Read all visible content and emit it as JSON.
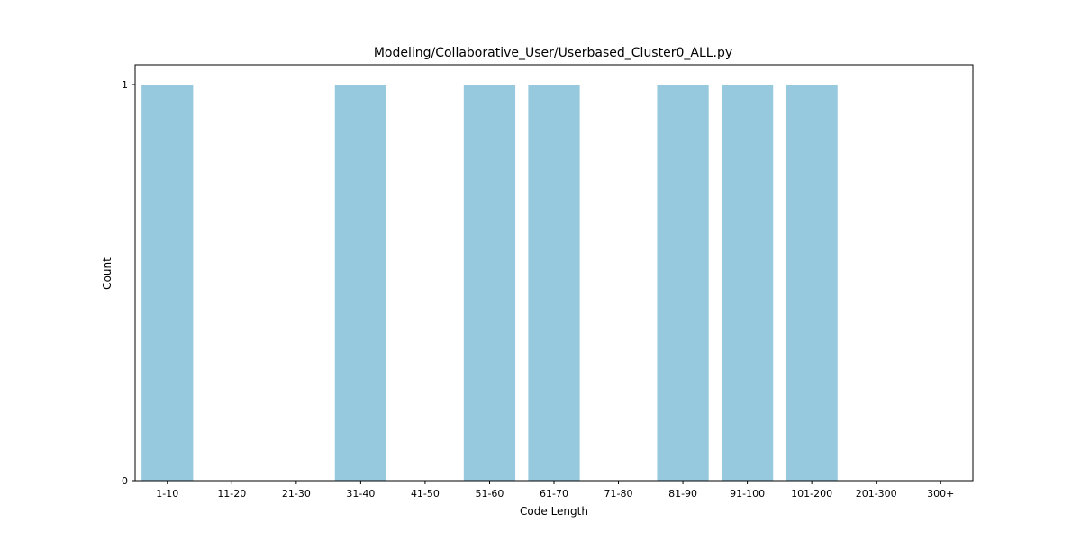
{
  "chart_data": {
    "type": "bar",
    "title": "Modeling/Collaborative_User/Userbased_Cluster0_ALL.py",
    "xlabel": "Code Length",
    "ylabel": "Count",
    "categories": [
      "1-10",
      "11-20",
      "21-30",
      "31-40",
      "41-50",
      "51-60",
      "61-70",
      "71-80",
      "81-90",
      "91-100",
      "101-200",
      "201-300",
      "300+"
    ],
    "values": [
      1,
      0,
      0,
      1,
      0,
      1,
      1,
      0,
      1,
      1,
      1,
      0,
      0
    ],
    "ylim": [
      0,
      1.05
    ],
    "yticks": [
      0,
      1
    ],
    "grid": false,
    "bar_color": "#96c9de"
  }
}
